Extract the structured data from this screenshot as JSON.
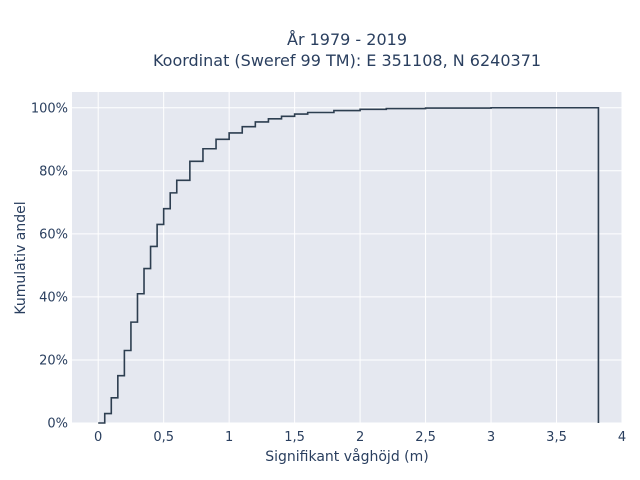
{
  "chart_data": {
    "type": "line",
    "title": "År 1979 - 2019",
    "subtitle": "Koordinat (Sweref 99 TM): E 351108, N 6240371",
    "xlabel": "Signifikant våghöjd (m)",
    "ylabel": "Kumulativ andel",
    "xlim": [
      -0.2,
      4
    ],
    "ylim": [
      0,
      105
    ],
    "x_ticks": [
      0,
      0.5,
      1,
      1.5,
      2,
      2.5,
      3,
      3.5,
      4
    ],
    "x_tick_labels": [
      "0",
      "0,5",
      "1",
      "1,5",
      "2",
      "2,5",
      "3",
      "3,5",
      "4"
    ],
    "y_ticks": [
      0,
      20,
      40,
      60,
      80,
      100
    ],
    "y_tick_labels": [
      "0%",
      "20%",
      "40%",
      "60%",
      "80%",
      "100%"
    ],
    "grid": true,
    "line_shape": "step",
    "line_color": "#2d3e50",
    "series": [
      {
        "x": [
          0.0,
          0.05,
          0.1,
          0.15,
          0.2,
          0.25,
          0.3,
          0.35,
          0.4,
          0.45,
          0.5,
          0.55,
          0.6,
          0.7,
          0.8,
          0.9,
          1.0,
          1.1,
          1.2,
          1.3,
          1.4,
          1.5,
          1.6,
          1.8,
          2.0,
          2.2,
          2.5,
          3.0,
          3.5,
          3.82,
          3.82
        ],
        "y": [
          0,
          3,
          8,
          15,
          23,
          32,
          41,
          49,
          56,
          63,
          68,
          73,
          77,
          83,
          87,
          90,
          92,
          94,
          95.5,
          96.5,
          97.3,
          98,
          98.5,
          99.1,
          99.5,
          99.75,
          99.9,
          100,
          100,
          100,
          0
        ]
      }
    ]
  }
}
